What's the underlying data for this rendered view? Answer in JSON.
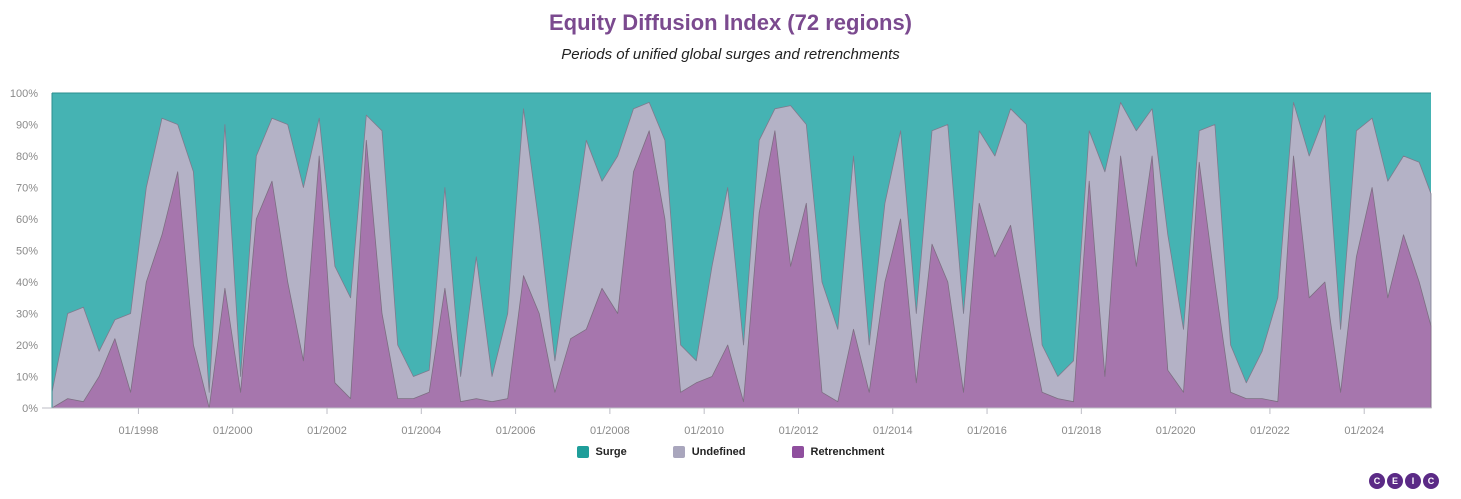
{
  "chart_data": {
    "type": "area",
    "stacked": true,
    "title": "Equity Diffusion Index (72 regions)",
    "subtitle": "Periods of unified global surges and retrenchments",
    "ylim": [
      0,
      100
    ],
    "y_ticks": [
      "0%",
      "10%",
      "20%",
      "30%",
      "40%",
      "50%",
      "60%",
      "70%",
      "80%",
      "90%",
      "100%"
    ],
    "x_range": [
      "1996-03",
      "2025-06"
    ],
    "x_ticks": [
      "01/1998",
      "01/2000",
      "01/2002",
      "01/2004",
      "01/2006",
      "01/2008",
      "01/2010",
      "01/2012",
      "01/2014",
      "01/2016",
      "01/2018",
      "01/2020",
      "01/2022",
      "01/2024"
    ],
    "grid": true,
    "legend_position": "bottom-center",
    "series": [
      {
        "name": "Surge",
        "color": "#45b3b3"
      },
      {
        "name": "Undefined",
        "color": "#b4b2c6"
      },
      {
        "name": "Retrenchment",
        "color": "#a676ad"
      }
    ],
    "x": [
      "1996-03",
      "1996-07",
      "1996-11",
      "1997-03",
      "1997-07",
      "1997-11",
      "1998-03",
      "1998-07",
      "1998-11",
      "1999-03",
      "1999-07",
      "1999-11",
      "2000-03",
      "2000-07",
      "2000-11",
      "2001-03",
      "2001-07",
      "2001-11",
      "2002-03",
      "2002-07",
      "2002-11",
      "2003-03",
      "2003-07",
      "2003-11",
      "2004-03",
      "2004-07",
      "2004-11",
      "2005-03",
      "2005-07",
      "2005-11",
      "2006-03",
      "2006-07",
      "2006-11",
      "2007-03",
      "2007-07",
      "2007-11",
      "2008-03",
      "2008-07",
      "2008-11",
      "2009-03",
      "2009-07",
      "2009-11",
      "2010-03",
      "2010-07",
      "2010-11",
      "2011-03",
      "2011-07",
      "2011-11",
      "2012-03",
      "2012-07",
      "2012-11",
      "2013-03",
      "2013-07",
      "2013-11",
      "2014-03",
      "2014-07",
      "2014-11",
      "2015-03",
      "2015-07",
      "2015-11",
      "2016-03",
      "2016-07",
      "2016-11",
      "2017-03",
      "2017-07",
      "2017-11",
      "2018-03",
      "2018-07",
      "2018-11",
      "2019-03",
      "2019-07",
      "2019-11",
      "2020-03",
      "2020-07",
      "2020-11",
      "2021-03",
      "2021-07",
      "2021-11",
      "2022-03",
      "2022-07",
      "2022-11",
      "2023-03",
      "2023-07",
      "2023-11",
      "2024-03",
      "2024-07",
      "2024-11",
      "2025-03",
      "2025-06"
    ],
    "retrenchment": [
      0,
      3,
      2,
      10,
      22,
      5,
      40,
      55,
      75,
      20,
      0,
      38,
      5,
      60,
      72,
      40,
      15,
      80,
      8,
      3,
      85,
      30,
      3,
      3,
      5,
      38,
      2,
      3,
      2,
      3,
      42,
      30,
      5,
      22,
      25,
      38,
      30,
      75,
      88,
      60,
      5,
      8,
      10,
      20,
      2,
      62,
      88,
      45,
      65,
      5,
      2,
      25,
      5,
      40,
      60,
      8,
      52,
      40,
      5,
      65,
      48,
      58,
      30,
      5,
      3,
      2,
      72,
      10,
      80,
      45,
      80,
      12,
      5,
      78,
      40,
      5,
      3,
      3,
      2,
      80,
      35,
      40,
      5,
      48,
      70,
      35,
      55,
      40,
      26
    ],
    "undefined": [
      5,
      30,
      32,
      18,
      28,
      30,
      70,
      92,
      90,
      75,
      5,
      90,
      10,
      80,
      92,
      90,
      70,
      92,
      45,
      35,
      93,
      88,
      20,
      10,
      12,
      70,
      10,
      48,
      10,
      30,
      95,
      58,
      15,
      50,
      85,
      72,
      80,
      95,
      97,
      85,
      20,
      15,
      45,
      70,
      20,
      85,
      95,
      96,
      90,
      40,
      25,
      80,
      20,
      65,
      88,
      30,
      88,
      90,
      30,
      88,
      80,
      95,
      90,
      20,
      10,
      15,
      88,
      75,
      97,
      88,
      95,
      55,
      25,
      88,
      90,
      20,
      8,
      18,
      35,
      97,
      80,
      93,
      25,
      88,
      92,
      72,
      80,
      78,
      68
    ]
  },
  "legend_items": [
    {
      "label": "Surge",
      "color": "#45b3b3"
    },
    {
      "label": "Undefined",
      "color": "#b4b2c6"
    },
    {
      "label": "Retrenchment",
      "color": "#a676ad"
    }
  ],
  "logo": {
    "letters": [
      "C",
      "E",
      "I",
      "C"
    ]
  }
}
